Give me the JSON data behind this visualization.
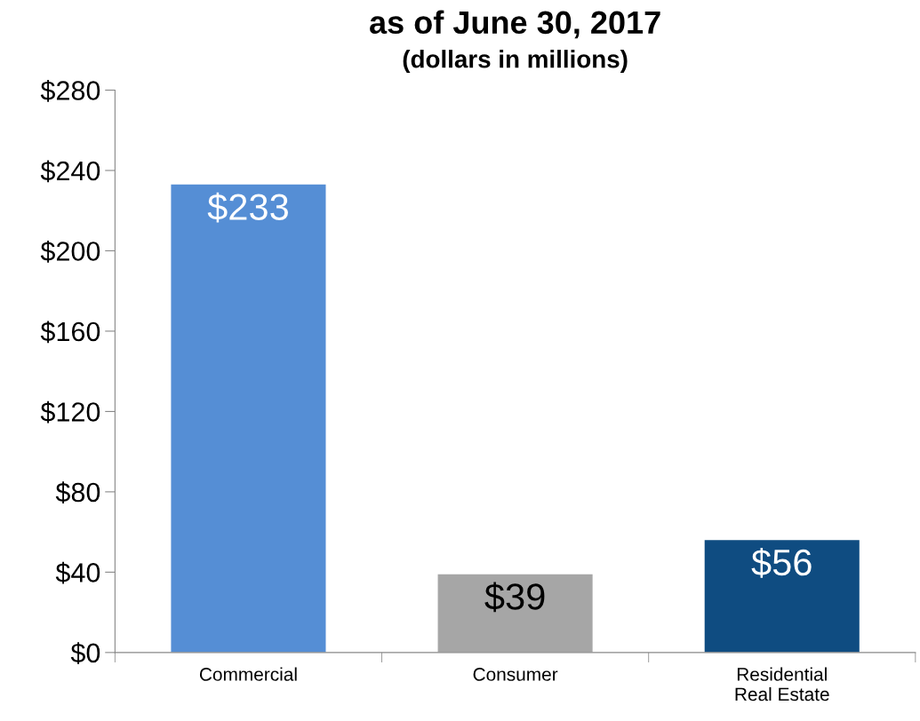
{
  "chart_data": {
    "type": "bar",
    "title": "as of June 30, 2017",
    "subtitle": "(dollars in millions)",
    "categories": [
      "Commercial",
      "Consumer",
      "Residential\nReal Estate"
    ],
    "values": [
      233,
      39,
      56
    ],
    "colors": [
      "#558ed5",
      "#a6a6a6",
      "#0f4c81"
    ],
    "value_labels": [
      "$233",
      "$39",
      "$56"
    ],
    "ylim": [
      0,
      280
    ],
    "yticks": [
      {
        "value": 0,
        "label": "$0"
      },
      {
        "value": 40,
        "label": "$40"
      },
      {
        "value": 80,
        "label": "$80"
      },
      {
        "value": 120,
        "label": "$120"
      },
      {
        "value": 160,
        "label": "$160"
      },
      {
        "value": 200,
        "label": "$200"
      },
      {
        "value": 240,
        "label": "$240"
      },
      {
        "value": 280,
        "label": "$280"
      }
    ],
    "grid": false,
    "legend": false
  }
}
